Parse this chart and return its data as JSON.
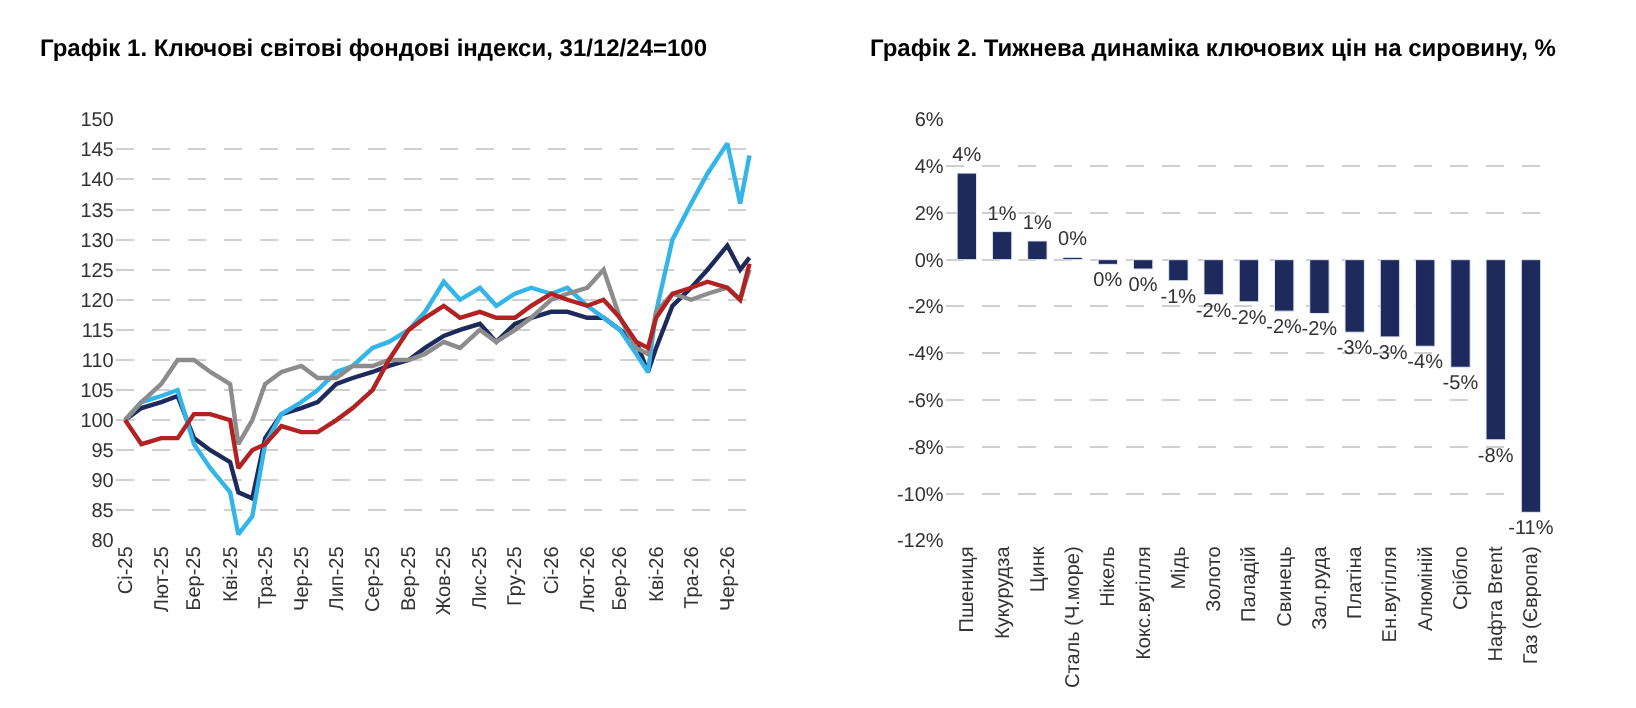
{
  "chart_data": [
    {
      "type": "line",
      "title": "Графік 1. Ключові світові фондові індекси, 31/12/24=100",
      "x": [
        "2025-01-01",
        "2025-01-15",
        "2025-02-01",
        "2025-02-15",
        "2025-03-01",
        "2025-03-15",
        "2025-04-01",
        "2025-04-08",
        "2025-04-20",
        "2025-05-01",
        "2025-05-15",
        "2025-06-01",
        "2025-06-15",
        "2025-07-01",
        "2025-07-15",
        "2025-08-01",
        "2025-08-15",
        "2025-09-01",
        "2025-09-15",
        "2025-10-01",
        "2025-10-15",
        "2025-11-01",
        "2025-11-15",
        "2025-12-01",
        "2025-12-15",
        "2026-01-01",
        "2026-01-15",
        "2026-02-01",
        "2026-02-15",
        "2026-03-01",
        "2026-03-15",
        "2026-03-25",
        "2026-04-01",
        "2026-04-15",
        "2026-05-01",
        "2026-05-15",
        "2026-06-01",
        "2026-06-12",
        "2026-06-20"
      ],
      "series": [
        {
          "color": "#1f2a5c",
          "values": [
            100,
            102,
            103,
            104,
            97,
            95,
            93,
            88,
            87,
            97,
            101,
            102,
            103,
            106,
            107,
            108,
            109,
            110,
            112,
            114,
            115,
            116,
            113,
            116,
            117,
            118,
            118,
            117,
            117,
            115,
            113,
            108,
            112,
            119,
            122,
            125,
            129,
            125,
            127
          ]
        },
        {
          "color": "#33b5ea",
          "values": [
            100,
            103,
            104,
            105,
            96,
            92,
            88,
            81,
            84,
            96,
            101,
            103,
            105,
            108,
            109,
            112,
            113,
            115,
            118,
            123,
            120,
            122,
            119,
            121,
            122,
            121,
            122,
            119,
            117,
            115,
            111,
            108,
            118,
            130,
            136,
            141,
            146,
            136,
            144
          ]
        },
        {
          "color": "#8c8c8c",
          "values": [
            100,
            103,
            106,
            110,
            110,
            108,
            106,
            96,
            100,
            106,
            108,
            109,
            107,
            107,
            109,
            109,
            110,
            110,
            111,
            113,
            112,
            115,
            113,
            115,
            117,
            120,
            121,
            122,
            125,
            117,
            112,
            111,
            118,
            121,
            120,
            121,
            122,
            120,
            125
          ]
        },
        {
          "color": "#b22222",
          "values": [
            100,
            96,
            97,
            97,
            101,
            101,
            100,
            92,
            95,
            96,
            99,
            98,
            98,
            100,
            102,
            105,
            110,
            115,
            117,
            119,
            117,
            118,
            117,
            117,
            119,
            121,
            120,
            119,
            120,
            117,
            113,
            112,
            117,
            121,
            122,
            123,
            122,
            120,
            126
          ]
        }
      ],
      "xlim": [
        "2024-12-24",
        "2026-06-24"
      ],
      "xticks": [
        {
          "value": "2025-01-01",
          "label": "Сі-25"
        },
        {
          "value": "2025-02-01",
          "label": "Лют-25"
        },
        {
          "value": "2025-03-01",
          "label": "Бер-25"
        },
        {
          "value": "2025-04-01",
          "label": "Кві-25"
        },
        {
          "value": "2025-05-01",
          "label": "Тра-25"
        },
        {
          "value": "2025-06-01",
          "label": "Чер-25"
        },
        {
          "value": "2025-07-01",
          "label": "Лип-25"
        },
        {
          "value": "2025-08-01",
          "label": "Сер-25"
        },
        {
          "value": "2025-09-01",
          "label": "Вер-25"
        },
        {
          "value": "2025-10-01",
          "label": "Жов-25"
        },
        {
          "value": "2025-11-01",
          "label": "Лис-25"
        },
        {
          "value": "2025-12-01",
          "label": "Гру-25"
        },
        {
          "value": "2026-01-01",
          "label": "Сі-26"
        },
        {
          "value": "2026-02-01",
          "label": "Лют-26"
        },
        {
          "value": "2026-03-01",
          "label": "Бер-26"
        },
        {
          "value": "2026-04-01",
          "label": "Кві-26"
        },
        {
          "value": "2026-05-01",
          "label": "Тра-26"
        },
        {
          "value": "2026-06-01",
          "label": "Чер-26"
        }
      ],
      "ylim": [
        80,
        150
      ],
      "yticks": [
        80,
        85,
        90,
        95,
        100,
        105,
        110,
        115,
        120,
        125,
        130,
        135,
        140,
        145,
        150
      ],
      "grid": "y",
      "line_style": "solid",
      "marker": "none"
    },
    {
      "type": "bar",
      "title": "Графік 2. Тижнева динаміка ключових цін на сировину, %",
      "categories": [
        "Пшениця",
        "Кукурудза",
        "Цинк",
        "Сталь (Ч.море)",
        "Нікель",
        "Кокс.вугілля",
        "Мідь",
        "Золото",
        "Паладій",
        "Свинець",
        "Зал.руда",
        "Платіна",
        "Ен.вугілля",
        "Алюміній",
        "Срібло",
        "Нафта Brent",
        "Газ (Європа)"
      ],
      "values": [
        3.7,
        1.2,
        0.8,
        0.1,
        -0.2,
        -0.4,
        -0.9,
        -1.5,
        -1.8,
        -2.2,
        -2.3,
        -3.1,
        -3.3,
        -3.7,
        -4.6,
        -7.7,
        -10.8
      ],
      "value_labels": [
        "4%",
        "1%",
        "1%",
        "0%",
        "0%",
        "0%",
        "-1%",
        "-2%",
        "-2%",
        "-2%",
        "-2%",
        "-3%",
        "-3%",
        "-4%",
        "-5%",
        "-8%",
        "-11%"
      ],
      "color": "#1f2a5c",
      "ylim": [
        -12,
        6
      ],
      "yticks": [
        {
          "value": -12,
          "label": "-12%"
        },
        {
          "value": -10,
          "label": "-10%"
        },
        {
          "value": -8,
          "label": "-8%"
        },
        {
          "value": -6,
          "label": "-6%"
        },
        {
          "value": -4,
          "label": "-4%"
        },
        {
          "value": -2,
          "label": "-2%"
        },
        {
          "value": 0,
          "label": "0%"
        },
        {
          "value": 2,
          "label": "2%"
        },
        {
          "value": 4,
          "label": "4%"
        },
        {
          "value": 6,
          "label": "6%"
        }
      ],
      "grid": "y"
    }
  ]
}
